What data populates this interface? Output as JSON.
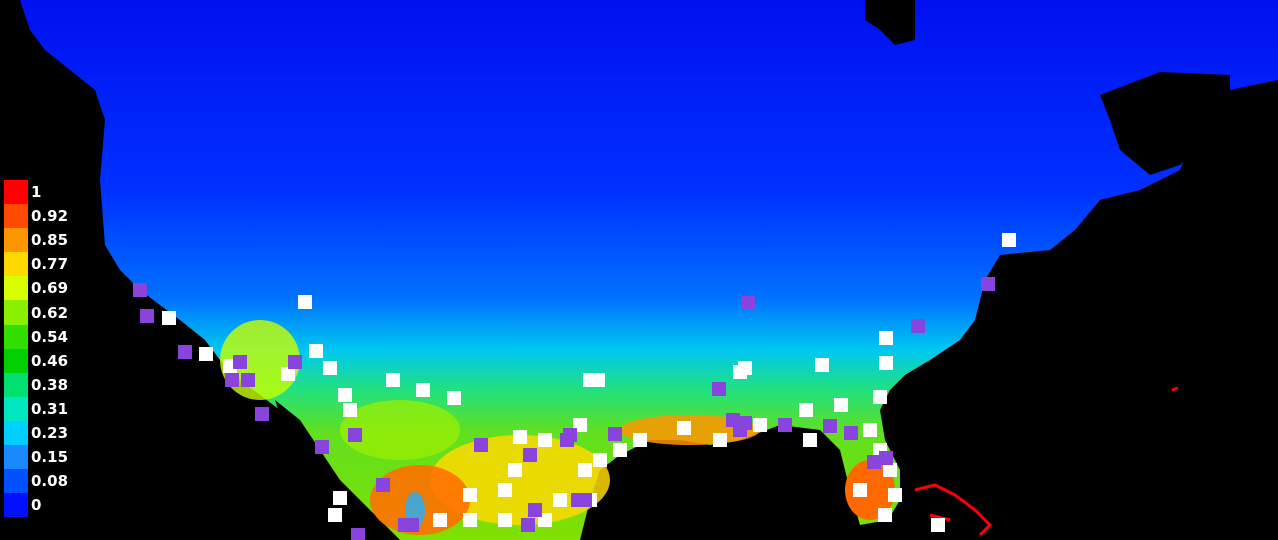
{
  "legend": {
    "items": [
      {
        "label": "1",
        "color": "#ff0000"
      },
      {
        "label": "0.92",
        "color": "#ff4a00"
      },
      {
        "label": "0.85",
        "color": "#ff9500"
      },
      {
        "label": "0.77",
        "color": "#ffd800"
      },
      {
        "label": "0.69",
        "color": "#d8ff00"
      },
      {
        "label": "0.62",
        "color": "#88f000"
      },
      {
        "label": "0.54",
        "color": "#33dd00"
      },
      {
        "label": "0.46",
        "color": "#00d000"
      },
      {
        "label": "0.38",
        "color": "#00e070"
      },
      {
        "label": "0.31",
        "color": "#00e8c0"
      },
      {
        "label": "0.23",
        "color": "#00d0ff"
      },
      {
        "label": "0.15",
        "color": "#1a88ff"
      },
      {
        "label": "0.08",
        "color": "#0050ff"
      },
      {
        "label": "0",
        "color": "#0010ff"
      }
    ]
  },
  "markers": {
    "white_color": "#ffffff",
    "purple_color": "#8844dd"
  }
}
